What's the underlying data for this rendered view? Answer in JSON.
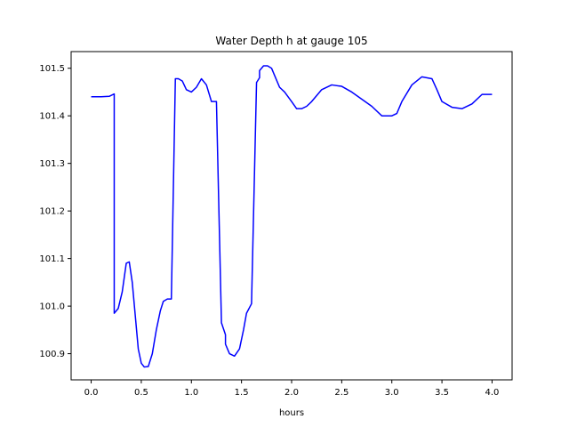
{
  "chart_data": {
    "type": "line",
    "title": "Water Depth h at gauge 105",
    "xlabel": "hours",
    "ylabel": "",
    "xlim": [
      -0.2,
      4.2
    ],
    "ylim": [
      100.845,
      101.535
    ],
    "xticks": [
      0.0,
      0.5,
      1.0,
      1.5,
      2.0,
      2.5,
      3.0,
      3.5,
      4.0
    ],
    "xtick_labels": [
      "0.0",
      "0.5",
      "1.0",
      "1.5",
      "2.0",
      "2.5",
      "3.0",
      "3.5",
      "4.0"
    ],
    "yticks": [
      100.9,
      101.0,
      101.1,
      101.2,
      101.3,
      101.4,
      101.5
    ],
    "ytick_labels": [
      "100.9",
      "101.0",
      "101.1",
      "101.2",
      "101.3",
      "101.4",
      "101.5"
    ],
    "grid": false,
    "series": [
      {
        "color": "#0000ff",
        "x": [
          0.0,
          0.1,
          0.18,
          0.23,
          0.23,
          0.27,
          0.31,
          0.35,
          0.38,
          0.41,
          0.44,
          0.47,
          0.5,
          0.53,
          0.57,
          0.61,
          0.65,
          0.69,
          0.72,
          0.76,
          0.8,
          0.84,
          0.87,
          0.87,
          0.91,
          0.95,
          1.0,
          1.05,
          1.1,
          1.15,
          1.2,
          1.25,
          1.3,
          1.34,
          1.34,
          1.38,
          1.43,
          1.48,
          1.52,
          1.55,
          1.6,
          1.65,
          1.68,
          1.68,
          1.72,
          1.76,
          1.8,
          1.84,
          1.88,
          1.93,
          2.0,
          2.05,
          2.1,
          2.15,
          2.2,
          2.3,
          2.4,
          2.5,
          2.6,
          2.7,
          2.8,
          2.9,
          3.0,
          3.05,
          3.1,
          3.2,
          3.3,
          3.4,
          3.45,
          3.5,
          3.6,
          3.7,
          3.8,
          3.9,
          4.0
        ],
        "y": [
          101.44,
          101.44,
          101.441,
          101.446,
          100.985,
          100.995,
          101.03,
          101.09,
          101.093,
          101.05,
          100.98,
          100.91,
          100.88,
          100.872,
          100.873,
          100.9,
          100.95,
          100.99,
          101.01,
          101.015,
          101.015,
          101.478,
          101.478,
          101.478,
          101.473,
          101.455,
          101.45,
          101.46,
          101.478,
          101.465,
          101.43,
          101.43,
          100.965,
          100.94,
          100.92,
          100.9,
          100.895,
          100.91,
          100.95,
          100.985,
          101.005,
          101.47,
          101.48,
          101.495,
          101.505,
          101.505,
          101.5,
          101.48,
          101.46,
          101.45,
          101.43,
          101.415,
          101.415,
          101.42,
          101.43,
          101.455,
          101.465,
          101.462,
          101.45,
          101.435,
          101.42,
          101.4,
          101.4,
          101.405,
          101.43,
          101.465,
          101.482,
          101.478,
          101.455,
          101.43,
          101.418,
          101.415,
          101.425,
          101.445,
          101.445
        ]
      }
    ]
  }
}
